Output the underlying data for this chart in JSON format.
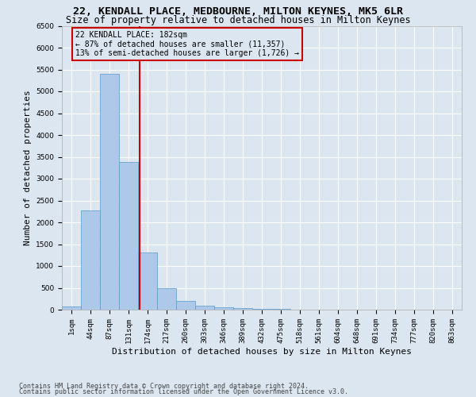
{
  "title": "22, KENDALL PLACE, MEDBOURNE, MILTON KEYNES, MK5 6LR",
  "subtitle": "Size of property relative to detached houses in Milton Keynes",
  "xlabel": "Distribution of detached houses by size in Milton Keynes",
  "ylabel": "Number of detached properties",
  "footer_line1": "Contains HM Land Registry data © Crown copyright and database right 2024.",
  "footer_line2": "Contains public sector information licensed under the Open Government Licence v3.0.",
  "bin_labels": [
    "1sqm",
    "44sqm",
    "87sqm",
    "131sqm",
    "174sqm",
    "217sqm",
    "260sqm",
    "303sqm",
    "346sqm",
    "389sqm",
    "432sqm",
    "475sqm",
    "518sqm",
    "561sqm",
    "604sqm",
    "648sqm",
    "691sqm",
    "734sqm",
    "777sqm",
    "820sqm",
    "863sqm"
  ],
  "bar_values": [
    75,
    2280,
    5400,
    3380,
    1310,
    490,
    200,
    95,
    60,
    40,
    15,
    10,
    3,
    1,
    0,
    0,
    0,
    0,
    0,
    0,
    0
  ],
  "bar_color": "#adc8e8",
  "bar_edge_color": "#5599cc",
  "vline_x": 3.57,
  "vline_color": "#cc0000",
  "annotation_text": "22 KENDALL PLACE: 182sqm\n← 87% of detached houses are smaller (11,357)\n13% of semi-detached houses are larger (1,726) →",
  "annotation_box_edgecolor": "#cc0000",
  "ylim": [
    0,
    6500
  ],
  "yticks": [
    0,
    500,
    1000,
    1500,
    2000,
    2500,
    3000,
    3500,
    4000,
    4500,
    5000,
    5500,
    6000,
    6500
  ],
  "background_color": "#dce6f0",
  "grid_color": "#ffffff",
  "title_fontsize": 9.5,
  "subtitle_fontsize": 8.5,
  "axis_label_fontsize": 8,
  "tick_fontsize": 6.5,
  "footer_fontsize": 6.0
}
